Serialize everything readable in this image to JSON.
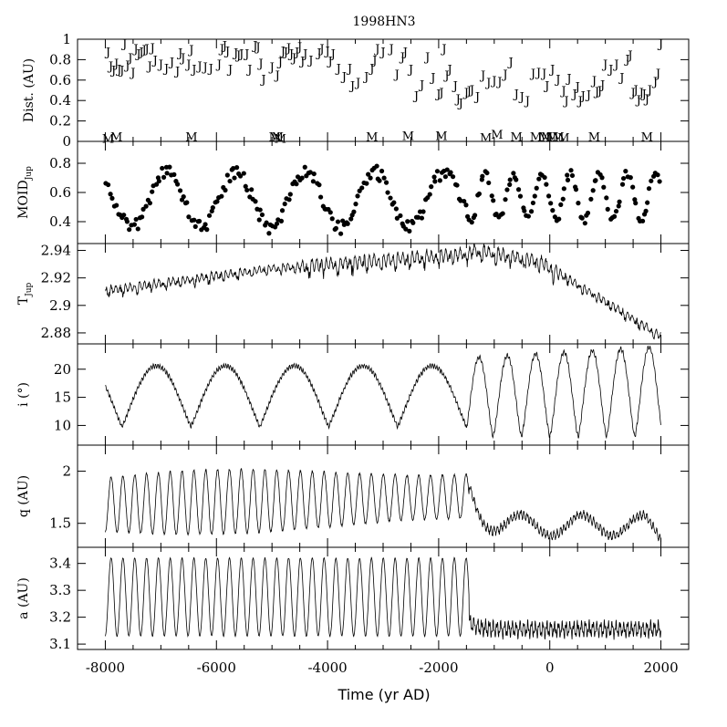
{
  "chart_data": {
    "type": "line",
    "title": "1998HN3",
    "xlabel": "Time (yr AD)",
    "xlim": [
      -8500,
      2500
    ],
    "x_ticks": [
      -8000,
      -6000,
      -4000,
      -2000,
      0,
      2000
    ],
    "x_tick_labels": [
      "-8000",
      "-6000",
      "-4000",
      "-2000",
      "0",
      "2000"
    ],
    "panels": [
      {
        "id": "dist",
        "ylabel": "Dist. (AU)",
        "type": "scatter",
        "ylim": [
          0,
          1
        ],
        "y_ticks": [
          0,
          0.2,
          0.4,
          0.6,
          0.8,
          1
        ],
        "y_tick_labels": [
          "0",
          "0.2",
          "0.4",
          "0.6",
          "0.8",
          "1"
        ],
        "series": [
          {
            "marker": "J",
            "points": [
              [
                -7950,
                0.88
              ],
              [
                -7900,
                0.74
              ],
              [
                -7850,
                0.7
              ],
              [
                -7800,
                0.77
              ],
              [
                -7750,
                0.71
              ],
              [
                -7700,
                0.7
              ],
              [
                -7650,
                0.96
              ],
              [
                -7600,
                0.75
              ],
              [
                -7550,
                0.82
              ],
              [
                -7500,
                0.68
              ],
              [
                -7450,
                0.91
              ],
              [
                -7400,
                0.86
              ],
              [
                -7350,
                0.88
              ],
              [
                -7300,
                0.9
              ],
              [
                -7250,
                0.91
              ],
              [
                -7200,
                0.74
              ],
              [
                -7150,
                0.92
              ],
              [
                -7100,
                0.8
              ],
              [
                -7000,
                0.76
              ],
              [
                -6900,
                0.72
              ],
              [
                -6800,
                0.78
              ],
              [
                -6700,
                0.69
              ],
              [
                -6650,
                0.87
              ],
              [
                -6600,
                0.82
              ],
              [
                -6500,
                0.76
              ],
              [
                -6450,
                0.9
              ],
              [
                -6400,
                0.71
              ],
              [
                -6300,
                0.74
              ],
              [
                -6200,
                0.73
              ],
              [
                -6100,
                0.72
              ],
              [
                -5950,
                0.76
              ],
              [
                -5900,
                0.91
              ],
              [
                -5850,
                0.94
              ],
              [
                -5800,
                0.89
              ],
              [
                -5750,
                0.71
              ],
              [
                -5650,
                0.87
              ],
              [
                -5600,
                0.85
              ],
              [
                -5550,
                0.86
              ],
              [
                -5450,
                0.86
              ],
              [
                -5400,
                0.71
              ],
              [
                -5300,
                0.94
              ],
              [
                -5250,
                0.93
              ],
              [
                -5200,
                0.77
              ],
              [
                -5150,
                0.61
              ],
              [
                -5000,
                0.73
              ],
              [
                -4900,
                0.65
              ],
              [
                -4850,
                0.78
              ],
              [
                -4800,
                0.89
              ],
              [
                -4750,
                0.88
              ],
              [
                -4700,
                0.92
              ],
              [
                -4650,
                0.86
              ],
              [
                -4600,
                0.82
              ],
              [
                -4550,
                0.88
              ],
              [
                -4500,
                0.93
              ],
              [
                -4450,
                0.79
              ],
              [
                -4400,
                0.86
              ],
              [
                -4300,
                0.8
              ],
              [
                -4150,
                0.87
              ],
              [
                -4100,
                0.91
              ],
              [
                -4000,
                0.89
              ],
              [
                -3950,
                0.79
              ],
              [
                -3900,
                0.86
              ],
              [
                -3800,
                0.72
              ],
              [
                -3700,
                0.64
              ],
              [
                -3600,
                0.72
              ],
              [
                -3550,
                0.55
              ],
              [
                -3450,
                0.58
              ],
              [
                -3300,
                0.64
              ],
              [
                -3200,
                0.72
              ],
              [
                -3150,
                0.8
              ],
              [
                -3100,
                0.91
              ],
              [
                -3000,
                0.88
              ],
              [
                -2850,
                0.91
              ],
              [
                -2750,
                0.66
              ],
              [
                -2650,
                0.83
              ],
              [
                -2600,
                0.88
              ],
              [
                -2500,
                0.71
              ],
              [
                -2400,
                0.45
              ],
              [
                -2300,
                0.56
              ],
              [
                -2200,
                0.83
              ],
              [
                -2100,
                0.63
              ],
              [
                -2000,
                0.47
              ],
              [
                -1950,
                0.48
              ],
              [
                -1900,
                0.91
              ],
              [
                -1850,
                0.65
              ],
              [
                -1800,
                0.71
              ],
              [
                -1700,
                0.55
              ],
              [
                -1650,
                0.42
              ],
              [
                -1600,
                0.38
              ],
              [
                -1500,
                0.48
              ],
              [
                -1450,
                0.5
              ],
              [
                -1400,
                0.51
              ],
              [
                -1300,
                0.44
              ],
              [
                -1200,
                0.65
              ],
              [
                -1100,
                0.58
              ],
              [
                -1000,
                0.6
              ],
              [
                -900,
                0.59
              ],
              [
                -800,
                0.66
              ],
              [
                -700,
                0.78
              ],
              [
                -600,
                0.47
              ],
              [
                -500,
                0.44
              ],
              [
                -400,
                0.4
              ],
              [
                -300,
                0.67
              ],
              [
                -200,
                0.68
              ],
              [
                -100,
                0.67
              ],
              [
                -50,
                0.55
              ],
              [
                50,
                0.71
              ],
              [
                150,
                0.61
              ],
              [
                250,
                0.5
              ],
              [
                300,
                0.4
              ],
              [
                350,
                0.62
              ],
              [
                450,
                0.47
              ],
              [
                500,
                0.54
              ],
              [
                550,
                0.4
              ],
              [
                600,
                0.45
              ],
              [
                700,
                0.46
              ],
              [
                800,
                0.6
              ],
              [
                850,
                0.49
              ],
              [
                900,
                0.5
              ],
              [
                950,
                0.56
              ],
              [
                1000,
                0.76
              ],
              [
                1100,
                0.71
              ],
              [
                1200,
                0.76
              ],
              [
                1300,
                0.63
              ],
              [
                1400,
                0.81
              ],
              [
                1450,
                0.85
              ],
              [
                1500,
                0.48
              ],
              [
                1550,
                0.51
              ],
              [
                1600,
                0.41
              ],
              [
                1650,
                0.48
              ],
              [
                1700,
                0.47
              ],
              [
                1750,
                0.42
              ],
              [
                1800,
                0.51
              ],
              [
                1900,
                0.59
              ],
              [
                1950,
                0.67
              ],
              [
                2000,
                0.96
              ]
            ]
          },
          {
            "marker": "M",
            "points": [
              [
                -7950,
                0.03
              ],
              [
                -7800,
                0.05
              ],
              [
                -6450,
                0.05
              ],
              [
                -4950,
                0.05
              ],
              [
                -4900,
                0.05
              ],
              [
                -4850,
                0.03
              ],
              [
                -3200,
                0.05
              ],
              [
                -2550,
                0.06
              ],
              [
                -1950,
                0.06
              ],
              [
                -1150,
                0.04
              ],
              [
                -950,
                0.07
              ],
              [
                -600,
                0.05
              ],
              [
                -250,
                0.05
              ],
              [
                -100,
                0.05
              ],
              [
                -50,
                0.05
              ],
              [
                50,
                0.05
              ],
              [
                150,
                0.05
              ],
              [
                250,
                0.04
              ],
              [
                800,
                0.05
              ],
              [
                1750,
                0.05
              ]
            ]
          }
        ]
      },
      {
        "id": "moid",
        "ylabel": "MOID",
        "ylabel_sub": "Jup",
        "type": "scatter",
        "ylim": [
          0.25,
          0.95
        ],
        "y_ticks": [
          0.4,
          0.6,
          0.8
        ],
        "y_tick_labels": [
          "0.4",
          "0.6",
          "0.8"
        ]
      },
      {
        "id": "tjup",
        "ylabel": "T",
        "ylabel_sub": "Jup",
        "type": "line",
        "ylim": [
          2.872,
          2.945
        ],
        "y_ticks": [
          2.88,
          2.9,
          2.92,
          2.94
        ],
        "y_tick_labels": [
          "2.88",
          "2.9",
          "2.92",
          "2.94"
        ]
      },
      {
        "id": "incl",
        "ylabel": "i (°)",
        "type": "line",
        "ylim": [
          6.5,
          24.5
        ],
        "y_ticks": [
          10,
          15,
          20
        ],
        "y_tick_labels": [
          "10",
          "15",
          "20"
        ]
      },
      {
        "id": "q",
        "ylabel": "q (AU)",
        "type": "line",
        "ylim": [
          1.27,
          2.25
        ],
        "y_ticks": [
          1.5,
          2
        ],
        "y_tick_labels": [
          "1.5",
          "2"
        ]
      },
      {
        "id": "a",
        "ylabel": "a (AU)",
        "type": "line",
        "ylim": [
          3.08,
          3.46
        ],
        "y_ticks": [
          3.1,
          3.2,
          3.3,
          3.4
        ],
        "y_tick_labels": [
          "3.1",
          "3.2",
          "3.3",
          "3.4"
        ]
      }
    ]
  }
}
